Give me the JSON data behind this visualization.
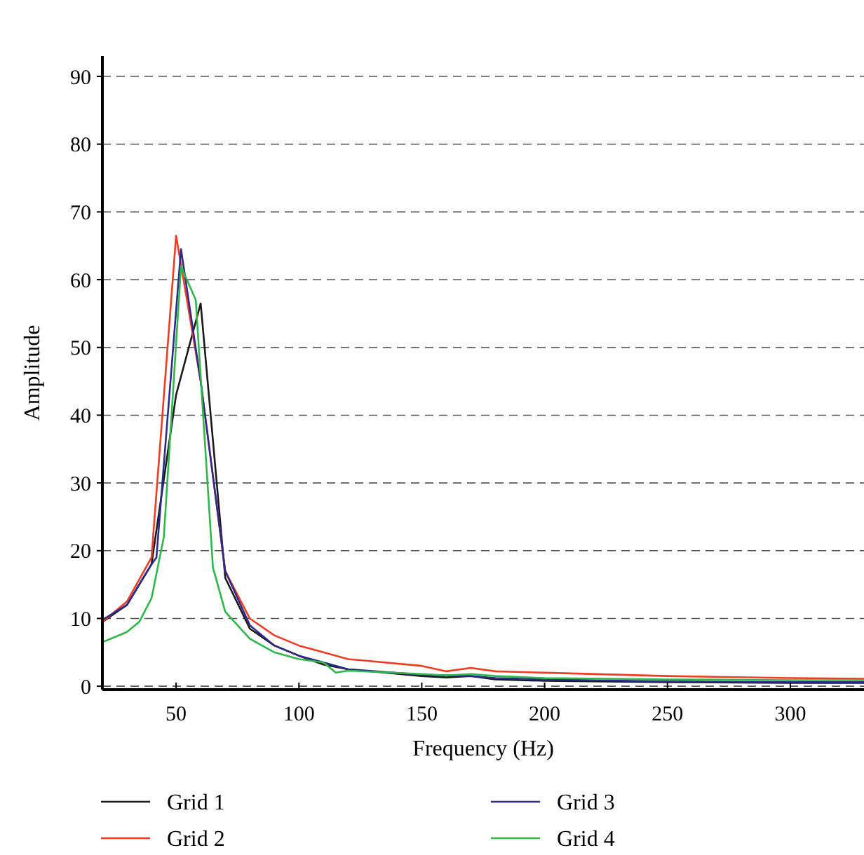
{
  "chart_data": {
    "type": "line",
    "xlabel": "Frequency (Hz)",
    "ylabel": "Amplitude",
    "xlim": [
      20,
      330
    ],
    "xticks": [
      50,
      100,
      150,
      200,
      250,
      300
    ],
    "ylim": [
      -0.5,
      93
    ],
    "yticks": [
      0,
      10,
      20,
      30,
      40,
      50,
      60,
      70,
      80,
      90
    ],
    "grid": "y",
    "legend": "bottom",
    "marker": "none",
    "line_style": "solid",
    "series": [
      {
        "name": "Grid 1",
        "color": "#1a1a1a",
        "x": [
          20,
          30,
          40,
          50,
          60,
          70,
          80,
          90,
          100,
          110,
          120,
          150,
          160,
          170,
          180,
          200,
          250,
          300,
          330
        ],
        "values": [
          9.5,
          12,
          18,
          43,
          56.5,
          16,
          8.5,
          6,
          4.5,
          3.2,
          2.5,
          1.5,
          1.3,
          1.5,
          1,
          0.8,
          0.6,
          0.5,
          0.5
        ]
      },
      {
        "name": "Grid 2",
        "color": "#f03c22",
        "x": [
          20,
          30,
          40,
          50,
          60,
          70,
          80,
          90,
          100,
          110,
          120,
          150,
          160,
          170,
          180,
          200,
          250,
          300,
          330
        ],
        "values": [
          9.5,
          12.5,
          19,
          66.5,
          45,
          17,
          10,
          7.5,
          6,
          5,
          4,
          3,
          2.2,
          2.7,
          2.2,
          2,
          1.5,
          1.2,
          1.1
        ]
      },
      {
        "name": "Grid 3",
        "color": "#2e2a8c",
        "x": [
          20,
          30,
          40,
          42,
          52,
          60,
          70,
          80,
          90,
          100,
          110,
          120,
          150,
          170,
          180,
          200,
          250,
          300,
          330
        ],
        "values": [
          9.8,
          12,
          18,
          19,
          64.5,
          45,
          17,
          9,
          6,
          4.5,
          3.5,
          2.5,
          1.7,
          1.5,
          1.2,
          1,
          0.7,
          0.6,
          0.6
        ]
      },
      {
        "name": "Grid 4",
        "color": "#2db84a",
        "x": [
          20,
          30,
          35,
          40,
          45,
          52,
          58,
          65,
          70,
          80,
          90,
          100,
          110,
          115,
          120,
          150,
          160,
          170,
          180,
          200,
          250,
          300,
          330
        ],
        "values": [
          6.5,
          8,
          9.5,
          13,
          22,
          62,
          57,
          17.5,
          11,
          7,
          5,
          4,
          3.5,
          2,
          2.3,
          1.8,
          1.6,
          1.8,
          1.5,
          1.2,
          1,
          0.9,
          0.9
        ]
      }
    ]
  }
}
